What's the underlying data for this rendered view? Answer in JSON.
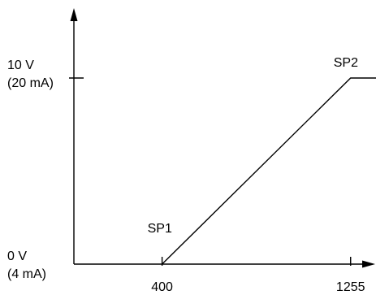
{
  "chart_data": {
    "type": "line",
    "title": "",
    "xlabel": "",
    "ylabel": "",
    "x_ticks": [
      {
        "value": 400,
        "label": "400"
      },
      {
        "value": 1255,
        "label": "1255"
      }
    ],
    "y_ticks": [
      {
        "value": 0,
        "label_lines": [
          "0 V",
          "(4 mA)"
        ]
      },
      {
        "value": 10,
        "label_lines": [
          "10 V",
          "(20 mA)"
        ]
      }
    ],
    "xlim": [
      0,
      1975
    ],
    "ylim": [
      0,
      10
    ],
    "grid": false,
    "legend": "none",
    "series": [
      {
        "points": [
          {
            "x": 400,
            "y": 0
          },
          {
            "x": 1255,
            "y": 10
          },
          {
            "x": 1700,
            "y": 10
          }
        ]
      }
    ],
    "annotations": [
      {
        "text": "SP1",
        "x": 400,
        "y": 0,
        "anchor": "above-left"
      },
      {
        "text": "SP2",
        "x": 1255,
        "y": 10,
        "anchor": "above"
      }
    ],
    "colors": {
      "line": "#000000",
      "axes": "#000000",
      "text": "#000000",
      "background": "#ffffff"
    }
  }
}
